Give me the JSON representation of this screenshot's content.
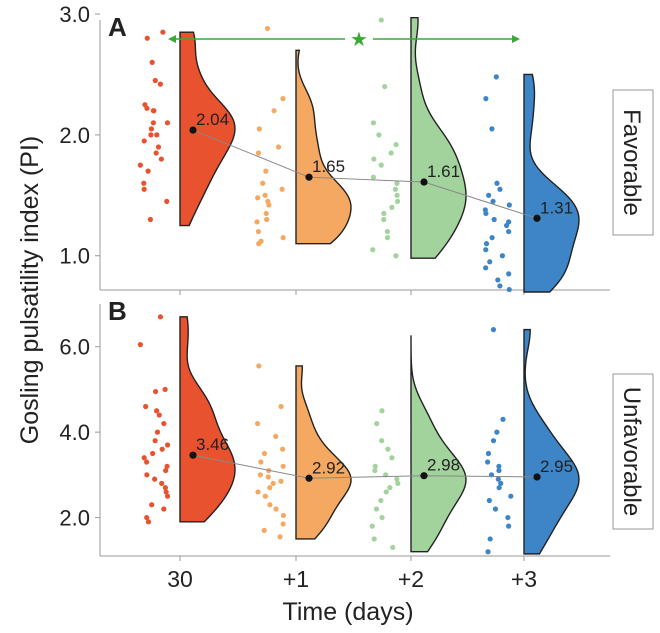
{
  "figure": {
    "ylabel": "Gosling pulsatility index (PI)",
    "xlabel": "Time (days)",
    "categories": [
      "30",
      "+1",
      "+2",
      "+3"
    ],
    "colors": [
      "#e8522e",
      "#f5a862",
      "#a3d39c",
      "#3d85c6"
    ],
    "significance": {
      "symbol": "★",
      "color": "#3aaa35"
    }
  },
  "chart_data": [
    {
      "type": "violin",
      "panel_label": "A",
      "strip_label": "Favorable",
      "categories": [
        "30",
        "+1",
        "+2",
        "+3"
      ],
      "ylim": [
        0.7,
        3.05
      ],
      "yticks": [
        1.0,
        2.0,
        3.0
      ],
      "ytick_labels": [
        "1.0",
        "2.0",
        "3.0"
      ],
      "means": [
        2.04,
        1.65,
        1.61,
        1.31
      ],
      "mean_labels": [
        "2.04",
        "1.65",
        "1.61",
        "1.31"
      ],
      "distribution_ranges": [
        [
          1.25,
          2.85
        ],
        [
          1.1,
          2.7
        ],
        [
          0.98,
          2.97
        ],
        [
          0.7,
          2.5
        ]
      ],
      "points": [
        [
          2.85,
          2.8,
          2.6,
          2.45,
          2.42,
          2.25,
          2.22,
          2.2,
          2.2,
          2.1,
          2.1,
          2.05,
          2.0,
          2.0,
          1.95,
          1.9,
          1.85,
          1.8,
          1.75,
          1.7,
          1.6,
          1.55,
          1.45,
          1.3
        ],
        [
          2.88,
          2.3,
          2.2,
          2.05,
          1.9,
          1.85,
          1.7,
          1.6,
          1.55,
          1.5,
          1.48,
          1.45,
          1.42,
          1.35,
          1.3,
          1.28,
          1.2,
          1.15,
          1.12,
          1.1
        ],
        [
          2.95,
          2.4,
          2.1,
          2.0,
          1.92,
          1.85,
          1.8,
          1.75,
          1.65,
          1.6,
          1.55,
          1.5,
          1.45,
          1.4,
          1.35,
          1.3,
          1.2,
          1.15,
          1.05,
          1.0
        ],
        [
          2.48,
          2.3,
          2.05,
          1.6,
          1.55,
          1.5,
          1.45,
          1.42,
          1.38,
          1.35,
          1.3,
          1.28,
          1.25,
          1.2,
          1.15,
          1.1,
          1.05,
          1.0,
          0.95,
          0.9,
          0.85,
          0.8,
          0.75,
          0.72
        ]
      ],
      "significance": {
        "from": "30",
        "to": "+3",
        "label": "★"
      }
    },
    {
      "type": "violin",
      "panel_label": "B",
      "strip_label": "Unfavorable",
      "categories": [
        "30",
        "+1",
        "+2",
        "+3"
      ],
      "ylim": [
        1.1,
        7.0
      ],
      "yticks": [
        2.0,
        4.0,
        6.0
      ],
      "ytick_labels": [
        "2.0",
        "4.0",
        "6.0"
      ],
      "means": [
        3.46,
        2.92,
        2.98,
        2.95
      ],
      "mean_labels": [
        "3.46",
        "2.92",
        "2.98",
        "2.95"
      ],
      "distribution_ranges": [
        [
          1.9,
          6.7
        ],
        [
          1.5,
          5.55
        ],
        [
          1.2,
          6.25
        ],
        [
          1.15,
          6.4
        ]
      ],
      "points": [
        [
          6.7,
          6.05,
          5.0,
          4.95,
          4.6,
          4.5,
          4.4,
          4.2,
          4.0,
          3.8,
          3.7,
          3.6,
          3.5,
          3.4,
          3.3,
          3.2,
          3.1,
          3.0,
          2.9,
          2.8,
          2.7,
          2.6,
          2.5,
          2.3,
          2.2,
          2.0,
          1.9
        ],
        [
          5.55,
          4.6,
          4.2,
          3.9,
          3.6,
          3.5,
          3.3,
          3.2,
          3.1,
          3.0,
          2.95,
          2.85,
          2.8,
          2.7,
          2.6,
          2.5,
          2.3,
          2.2,
          2.05,
          1.85,
          1.7,
          1.55
        ],
        [
          4.5,
          4.2,
          3.8,
          3.6,
          3.4,
          3.2,
          3.1,
          3.0,
          2.9,
          2.8,
          2.7,
          2.6,
          2.4,
          2.2,
          2.0,
          1.8,
          1.5,
          1.3
        ],
        [
          6.4,
          4.3,
          4.0,
          3.8,
          3.5,
          3.3,
          3.2,
          3.1,
          3.0,
          2.9,
          2.8,
          2.7,
          2.5,
          2.4,
          2.2,
          2.0,
          1.8,
          1.5,
          1.2
        ]
      ]
    }
  ]
}
